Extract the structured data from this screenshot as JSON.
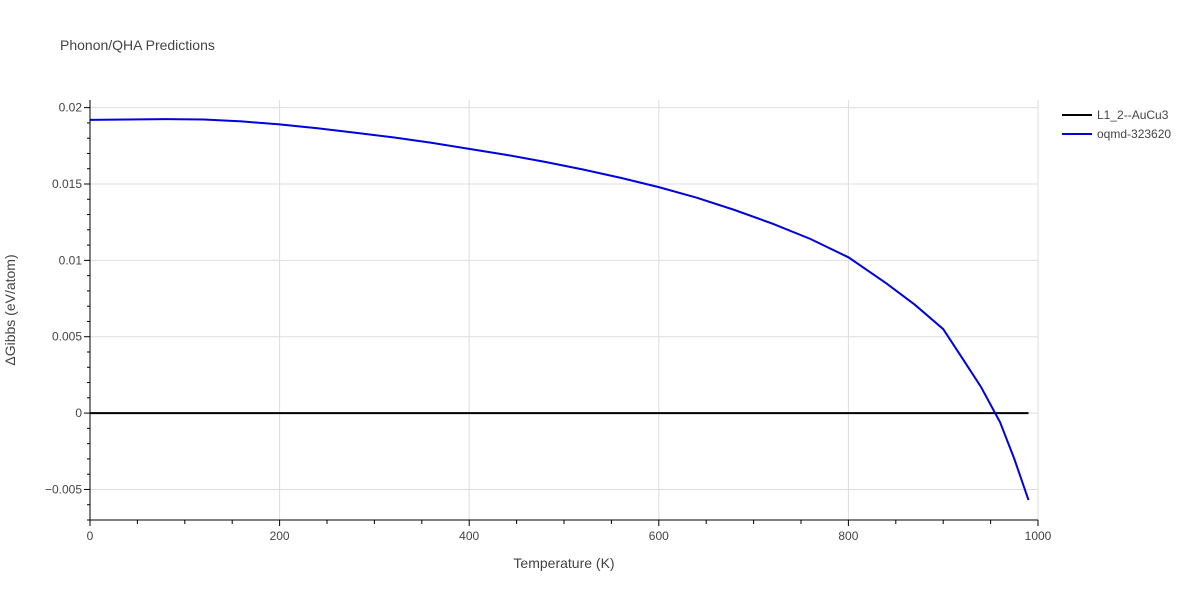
{
  "chart_data": {
    "type": "line",
    "title": "Phonon/QHA Predictions",
    "xlabel": "Temperature (K)",
    "ylabel": "ΔGibbs (eV/atom)",
    "xlim": [
      0,
      1000
    ],
    "ylim": [
      -0.007,
      0.0205
    ],
    "xticks": [
      0,
      200,
      400,
      600,
      800,
      1000
    ],
    "xtick_labels": [
      "0",
      "200",
      "400",
      "600",
      "800",
      "1000"
    ],
    "yticks": [
      -0.005,
      0,
      0.005,
      0.01,
      0.015,
      0.02
    ],
    "ytick_labels": [
      "−0.005",
      "0",
      "0.005",
      "0.01",
      "0.015",
      "0.02"
    ],
    "grid": true,
    "legend_position": "top-right",
    "series": [
      {
        "name": "L1_2--AuCu3",
        "color": "#000000",
        "x": [
          0,
          990
        ],
        "y": [
          0,
          0
        ]
      },
      {
        "name": "oqmd-323620",
        "color": "#0000dd",
        "x": [
          0,
          40,
          80,
          120,
          160,
          200,
          240,
          280,
          320,
          360,
          400,
          440,
          480,
          520,
          560,
          600,
          640,
          680,
          720,
          760,
          800,
          840,
          870,
          900,
          920,
          940,
          960,
          975,
          990
        ],
        "y": [
          0.0192,
          0.01922,
          0.01925,
          0.01922,
          0.0191,
          0.0189,
          0.01865,
          0.01835,
          0.01805,
          0.0177,
          0.0173,
          0.0169,
          0.01645,
          0.01595,
          0.0154,
          0.0148,
          0.0141,
          0.0133,
          0.0124,
          0.0114,
          0.0102,
          0.0085,
          0.0071,
          0.0055,
          0.0036,
          0.0017,
          -0.0006,
          -0.003,
          -0.0057
        ]
      }
    ]
  }
}
